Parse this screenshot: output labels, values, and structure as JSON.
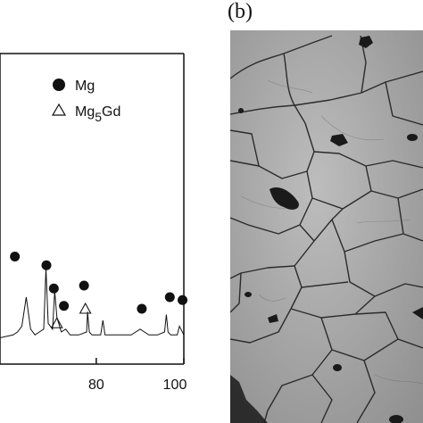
{
  "figure": {
    "panel_a": {
      "legend": {
        "mg": "Mg",
        "mg5gd_prefix": "Mg",
        "mg5gd_sub": "5",
        "mg5gd_suffix": "Gd"
      },
      "x_tick_labels": [
        "80",
        "100"
      ]
    },
    "panel_b": {
      "label": "(b)",
      "image_description_icon": "sem-micrograph-grain-structure"
    }
  },
  "chart_data": {
    "type": "line",
    "title": "",
    "xlabel": "",
    "ylabel": "",
    "xlim": [
      58,
      100
    ],
    "ylim": [
      0,
      1
    ],
    "xticks": [
      80,
      100
    ],
    "grid": false,
    "legend_position": "top-right",
    "series": [
      {
        "name": "",
        "x": [
          58,
          61,
          62,
          63,
          64,
          65,
          66,
          67,
          68,
          68.5,
          69,
          70,
          70.5,
          71,
          72,
          73,
          74,
          76,
          77.8,
          78,
          78.4,
          79,
          81,
          81.5,
          82,
          85,
          88,
          90,
          92,
          94,
          95.6,
          96,
          96.4,
          97,
          98.5,
          99,
          100
        ],
        "y": [
          0.02,
          0.03,
          0.04,
          0.06,
          0.16,
          0.05,
          0.03,
          0.04,
          0.05,
          0.26,
          0.07,
          0.05,
          0.18,
          0.09,
          0.04,
          0.05,
          0.03,
          0.03,
          0.04,
          0.11,
          0.04,
          0.03,
          0.03,
          0.08,
          0.03,
          0.03,
          0.03,
          0.05,
          0.03,
          0.03,
          0.04,
          0.1,
          0.04,
          0.03,
          0.03,
          0.06,
          0.03
        ]
      }
    ],
    "markers": {
      "mg_peaks": [
        {
          "x": 61.4,
          "y": 0.3
        },
        {
          "x": 68.6,
          "y": 0.27
        },
        {
          "x": 70.3,
          "y": 0.19
        },
        {
          "x": 72.6,
          "y": 0.13
        },
        {
          "x": 77.2,
          "y": 0.2
        },
        {
          "x": 90.4,
          "y": 0.12
        },
        {
          "x": 96.8,
          "y": 0.16
        },
        {
          "x": 99.7,
          "y": 0.15
        }
      ],
      "mg5gd_peaks": [
        {
          "x": 71.0,
          "y": 0.07
        },
        {
          "x": 77.5,
          "y": 0.12
        }
      ]
    }
  },
  "colors": {
    "ink": "#111111",
    "micrograph_base": "#a9a9a9",
    "grain_boundary": "#2b2b2b",
    "dark_artifact": "#1a1a1a"
  }
}
